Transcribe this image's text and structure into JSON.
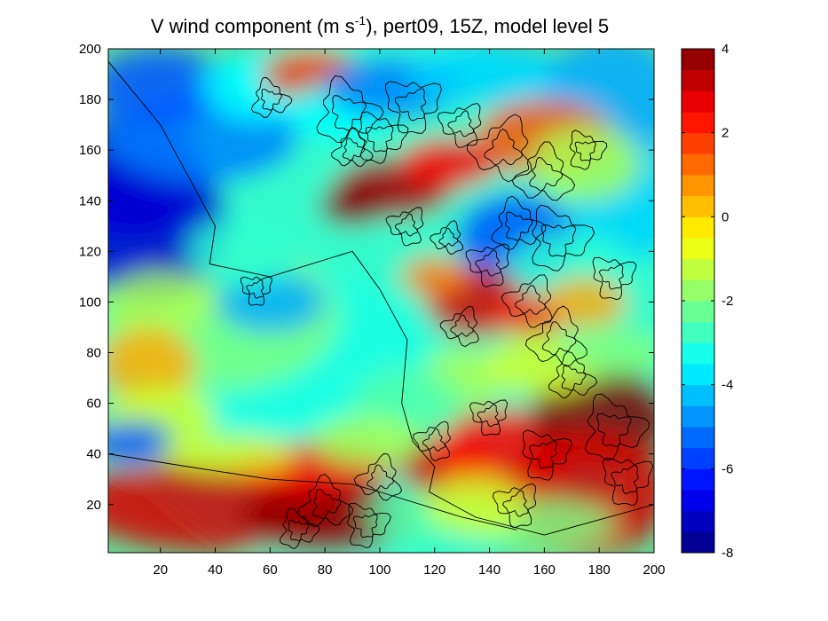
{
  "chart_data": {
    "type": "heatmap",
    "title_main": "V wind component (m s",
    "title_sup": "-1",
    "title_rest": "), pert09, 15Z, model level 5",
    "xlim": [
      1,
      200
    ],
    "ylim": [
      1,
      200
    ],
    "x_ticks": [
      "20",
      "40",
      "60",
      "80",
      "100",
      "120",
      "140",
      "160",
      "180",
      "200"
    ],
    "y_ticks": [
      "20",
      "40",
      "60",
      "80",
      "100",
      "120",
      "140",
      "160",
      "180",
      "200"
    ],
    "colorbar": {
      "range": [
        -8,
        4
      ],
      "levels": 24,
      "ticks": [
        "-8",
        "-6",
        "-4",
        "-2",
        "0",
        "2",
        "4"
      ],
      "colormap": "jet"
    },
    "contours": "black terrain-like contour lines overlaid",
    "regions": [
      {
        "desc": "strong negative (blue) west",
        "x": 20,
        "y": 130,
        "value": -7
      },
      {
        "desc": "negative (blue) northwest",
        "x": 30,
        "y": 165,
        "value": -6
      },
      {
        "desc": "positive (red) band",
        "x": 95,
        "y": 145,
        "value": 3.5
      },
      {
        "desc": "positive (red) center-right",
        "x": 130,
        "y": 95,
        "value": 3
      },
      {
        "desc": "positive (red) southeast",
        "x": 180,
        "y": 55,
        "value": 4
      },
      {
        "desc": "positive (red) south",
        "x": 80,
        "y": 15,
        "value": 3.5
      },
      {
        "desc": "moderate negative (cyan) center",
        "x": 70,
        "y": 80,
        "value": -3
      }
    ]
  }
}
